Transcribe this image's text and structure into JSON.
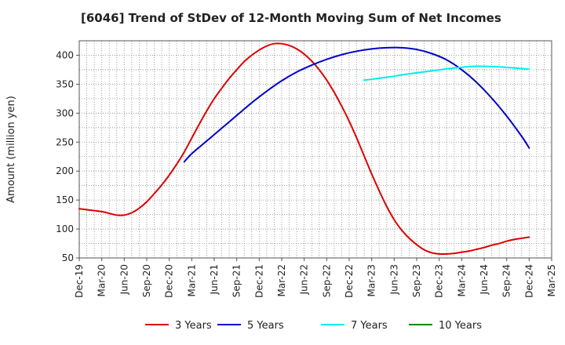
{
  "chart_data": {
    "type": "line",
    "title": "[6046]  Trend of StDev of 12-Month Moving Sum of Net Incomes",
    "xlabel": "",
    "ylabel": "Amount (million yen)",
    "ylim": [
      50,
      425
    ],
    "yticks": [
      50,
      100,
      150,
      200,
      250,
      300,
      350,
      400
    ],
    "x_tick_labels": [
      "Dec-19",
      "Mar-20",
      "Jun-20",
      "Sep-20",
      "Dec-20",
      "Mar-21",
      "Jun-21",
      "Sep-21",
      "Dec-21",
      "Mar-22",
      "Jun-22",
      "Sep-22",
      "Dec-22",
      "Mar-23",
      "Jun-23",
      "Sep-23",
      "Dec-23",
      "Mar-24",
      "Jun-24",
      "Sep-24",
      "Dec-24",
      "Mar-25"
    ],
    "grid": true,
    "legend_position": "bottom",
    "series": [
      {
        "name": "3 Years",
        "color": "#dd0000",
        "points": [
          [
            "Dec-19",
            135
          ],
          [
            "Mar-20",
            130
          ],
          [
            "Apr-20",
            127
          ],
          [
            "May-20",
            124
          ],
          [
            "Jun-20",
            124
          ],
          [
            "Jul-20",
            128
          ],
          [
            "Aug-20",
            136
          ],
          [
            "Sep-20",
            147
          ],
          [
            "Oct-20",
            161
          ],
          [
            "Nov-20",
            176
          ],
          [
            "Dec-20",
            193
          ],
          [
            "Jan-21",
            212
          ],
          [
            "Feb-21",
            233
          ],
          [
            "Mar-21",
            257
          ],
          [
            "Apr-21",
            281
          ],
          [
            "May-21",
            304
          ],
          [
            "Jun-21",
            325
          ],
          [
            "Jul-21",
            343
          ],
          [
            "Aug-21",
            360
          ],
          [
            "Sep-21",
            375
          ],
          [
            "Oct-21",
            389
          ],
          [
            "Nov-21",
            400
          ],
          [
            "Dec-21",
            409
          ],
          [
            "Jan-22",
            416
          ],
          [
            "Feb-22",
            420
          ],
          [
            "Mar-22",
            420
          ],
          [
            "Apr-22",
            417
          ],
          [
            "May-22",
            411
          ],
          [
            "Jun-22",
            402
          ],
          [
            "Jul-22",
            390
          ],
          [
            "Aug-22",
            375
          ],
          [
            "Sep-22",
            357
          ],
          [
            "Oct-22",
            336
          ],
          [
            "Nov-22",
            312
          ],
          [
            "Dec-22",
            286
          ],
          [
            "Jan-23",
            257
          ],
          [
            "Feb-23",
            226
          ],
          [
            "Mar-23",
            195
          ],
          [
            "Apr-23",
            166
          ],
          [
            "May-23",
            139
          ],
          [
            "Jun-23",
            116
          ],
          [
            "Jul-23",
            98
          ],
          [
            "Aug-23",
            84
          ],
          [
            "Sep-23",
            73
          ],
          [
            "Oct-23",
            64
          ],
          [
            "Nov-23",
            59
          ],
          [
            "Dec-23",
            57
          ],
          [
            "Jan-24",
            57
          ],
          [
            "Feb-24",
            58
          ],
          [
            "Mar-24",
            60
          ],
          [
            "Apr-24",
            62
          ],
          [
            "May-24",
            65
          ],
          [
            "Jun-24",
            68
          ],
          [
            "Jul-24",
            72
          ],
          [
            "Aug-24",
            75
          ],
          [
            "Sep-24",
            79
          ],
          [
            "Oct-24",
            82
          ],
          [
            "Nov-24",
            84
          ],
          [
            "Dec-24",
            86
          ]
        ]
      },
      {
        "name": "5 Years",
        "color": "#0000cc",
        "points": [
          [
            "Feb-21",
            216
          ],
          [
            "Mar-21",
            230
          ],
          [
            "May-21",
            252
          ],
          [
            "Jul-21",
            274
          ],
          [
            "Sep-21",
            296
          ],
          [
            "Nov-21",
            318
          ],
          [
            "Jan-22",
            338
          ],
          [
            "Mar-22",
            356
          ],
          [
            "May-22",
            371
          ],
          [
            "Jul-22",
            383
          ],
          [
            "Sep-22",
            393
          ],
          [
            "Nov-22",
            401
          ],
          [
            "Jan-23",
            407
          ],
          [
            "Mar-23",
            411
          ],
          [
            "May-23",
            413
          ],
          [
            "Jul-23",
            413
          ],
          [
            "Sep-23",
            410
          ],
          [
            "Nov-23",
            403
          ],
          [
            "Jan-24",
            392
          ],
          [
            "Mar-24",
            375
          ],
          [
            "May-24",
            353
          ],
          [
            "Jul-24",
            326
          ],
          [
            "Sep-24",
            295
          ],
          [
            "Nov-24",
            260
          ],
          [
            "Dec-24",
            240
          ]
        ]
      },
      {
        "name": "7 Years",
        "color": "#00eeee",
        "points": [
          [
            "Feb-23",
            357
          ],
          [
            "May-23",
            362
          ],
          [
            "Aug-23",
            368
          ],
          [
            "Nov-23",
            373
          ],
          [
            "Feb-24",
            378
          ],
          [
            "May-24",
            381
          ],
          [
            "Aug-24",
            380
          ],
          [
            "Nov-24",
            377
          ],
          [
            "Dec-24",
            376
          ]
        ]
      },
      {
        "name": "10 Years",
        "color": "#008800",
        "points": []
      }
    ]
  }
}
